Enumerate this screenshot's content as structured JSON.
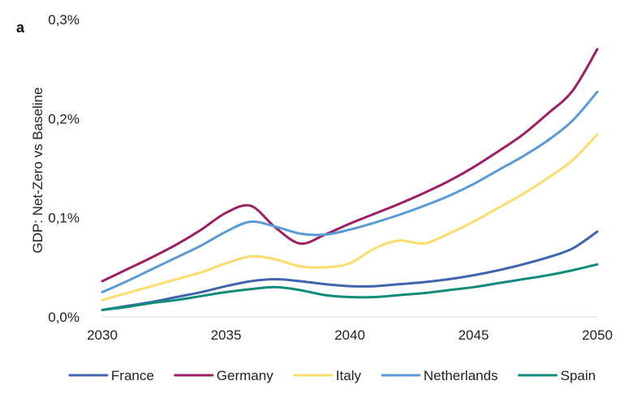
{
  "panel_label": "a",
  "chart_data": {
    "type": "line",
    "title": "",
    "xlabel": "",
    "ylabel": "GDP: Net-Zero vs Baseline",
    "xlim": [
      2030,
      2050
    ],
    "ylim": [
      0,
      0.3
    ],
    "x_ticks": [
      2030,
      2035,
      2040,
      2045,
      2050
    ],
    "x_tick_labels": [
      "2030",
      "2035",
      "2040",
      "2045",
      "2050"
    ],
    "y_ticks": [
      0,
      0.1,
      0.2,
      0.3
    ],
    "y_tick_labels": [
      "0,0%",
      "0,1%",
      "0,2%",
      "0,3%"
    ],
    "grid": false,
    "legend_position": "bottom",
    "x": [
      2030,
      2031,
      2032,
      2033,
      2034,
      2035,
      2036,
      2037,
      2038,
      2039,
      2040,
      2041,
      2042,
      2043,
      2044,
      2045,
      2046,
      2047,
      2048,
      2049,
      2050
    ],
    "series": [
      {
        "name": "France",
        "color": "#3f64b0",
        "values": [
          0.007,
          0.011,
          0.015,
          0.02,
          0.025,
          0.031,
          0.036,
          0.038,
          0.036,
          0.033,
          0.031,
          0.031,
          0.033,
          0.035,
          0.038,
          0.042,
          0.047,
          0.053,
          0.06,
          0.069,
          0.086
        ]
      },
      {
        "name": "Germany",
        "color": "#9e1f63",
        "values": [
          0.036,
          0.048,
          0.06,
          0.073,
          0.088,
          0.105,
          0.112,
          0.09,
          0.074,
          0.083,
          0.094,
          0.104,
          0.114,
          0.125,
          0.137,
          0.151,
          0.167,
          0.184,
          0.205,
          0.228,
          0.27
        ]
      },
      {
        "name": "Italy",
        "color": "#fbdc6c",
        "values": [
          0.017,
          0.024,
          0.031,
          0.038,
          0.045,
          0.054,
          0.061,
          0.058,
          0.051,
          0.05,
          0.054,
          0.069,
          0.077,
          0.074,
          0.084,
          0.096,
          0.11,
          0.124,
          0.14,
          0.158,
          0.184
        ]
      },
      {
        "name": "Netherlands",
        "color": "#5b9bd5",
        "values": [
          0.025,
          0.036,
          0.048,
          0.06,
          0.072,
          0.086,
          0.096,
          0.091,
          0.084,
          0.083,
          0.088,
          0.095,
          0.103,
          0.112,
          0.122,
          0.134,
          0.148,
          0.162,
          0.178,
          0.198,
          0.227
        ]
      },
      {
        "name": "Spain",
        "color": "#0e8c79",
        "values": [
          0.007,
          0.01,
          0.014,
          0.017,
          0.021,
          0.025,
          0.028,
          0.03,
          0.027,
          0.022,
          0.02,
          0.02,
          0.022,
          0.024,
          0.027,
          0.03,
          0.034,
          0.038,
          0.042,
          0.047,
          0.053
        ]
      }
    ]
  }
}
